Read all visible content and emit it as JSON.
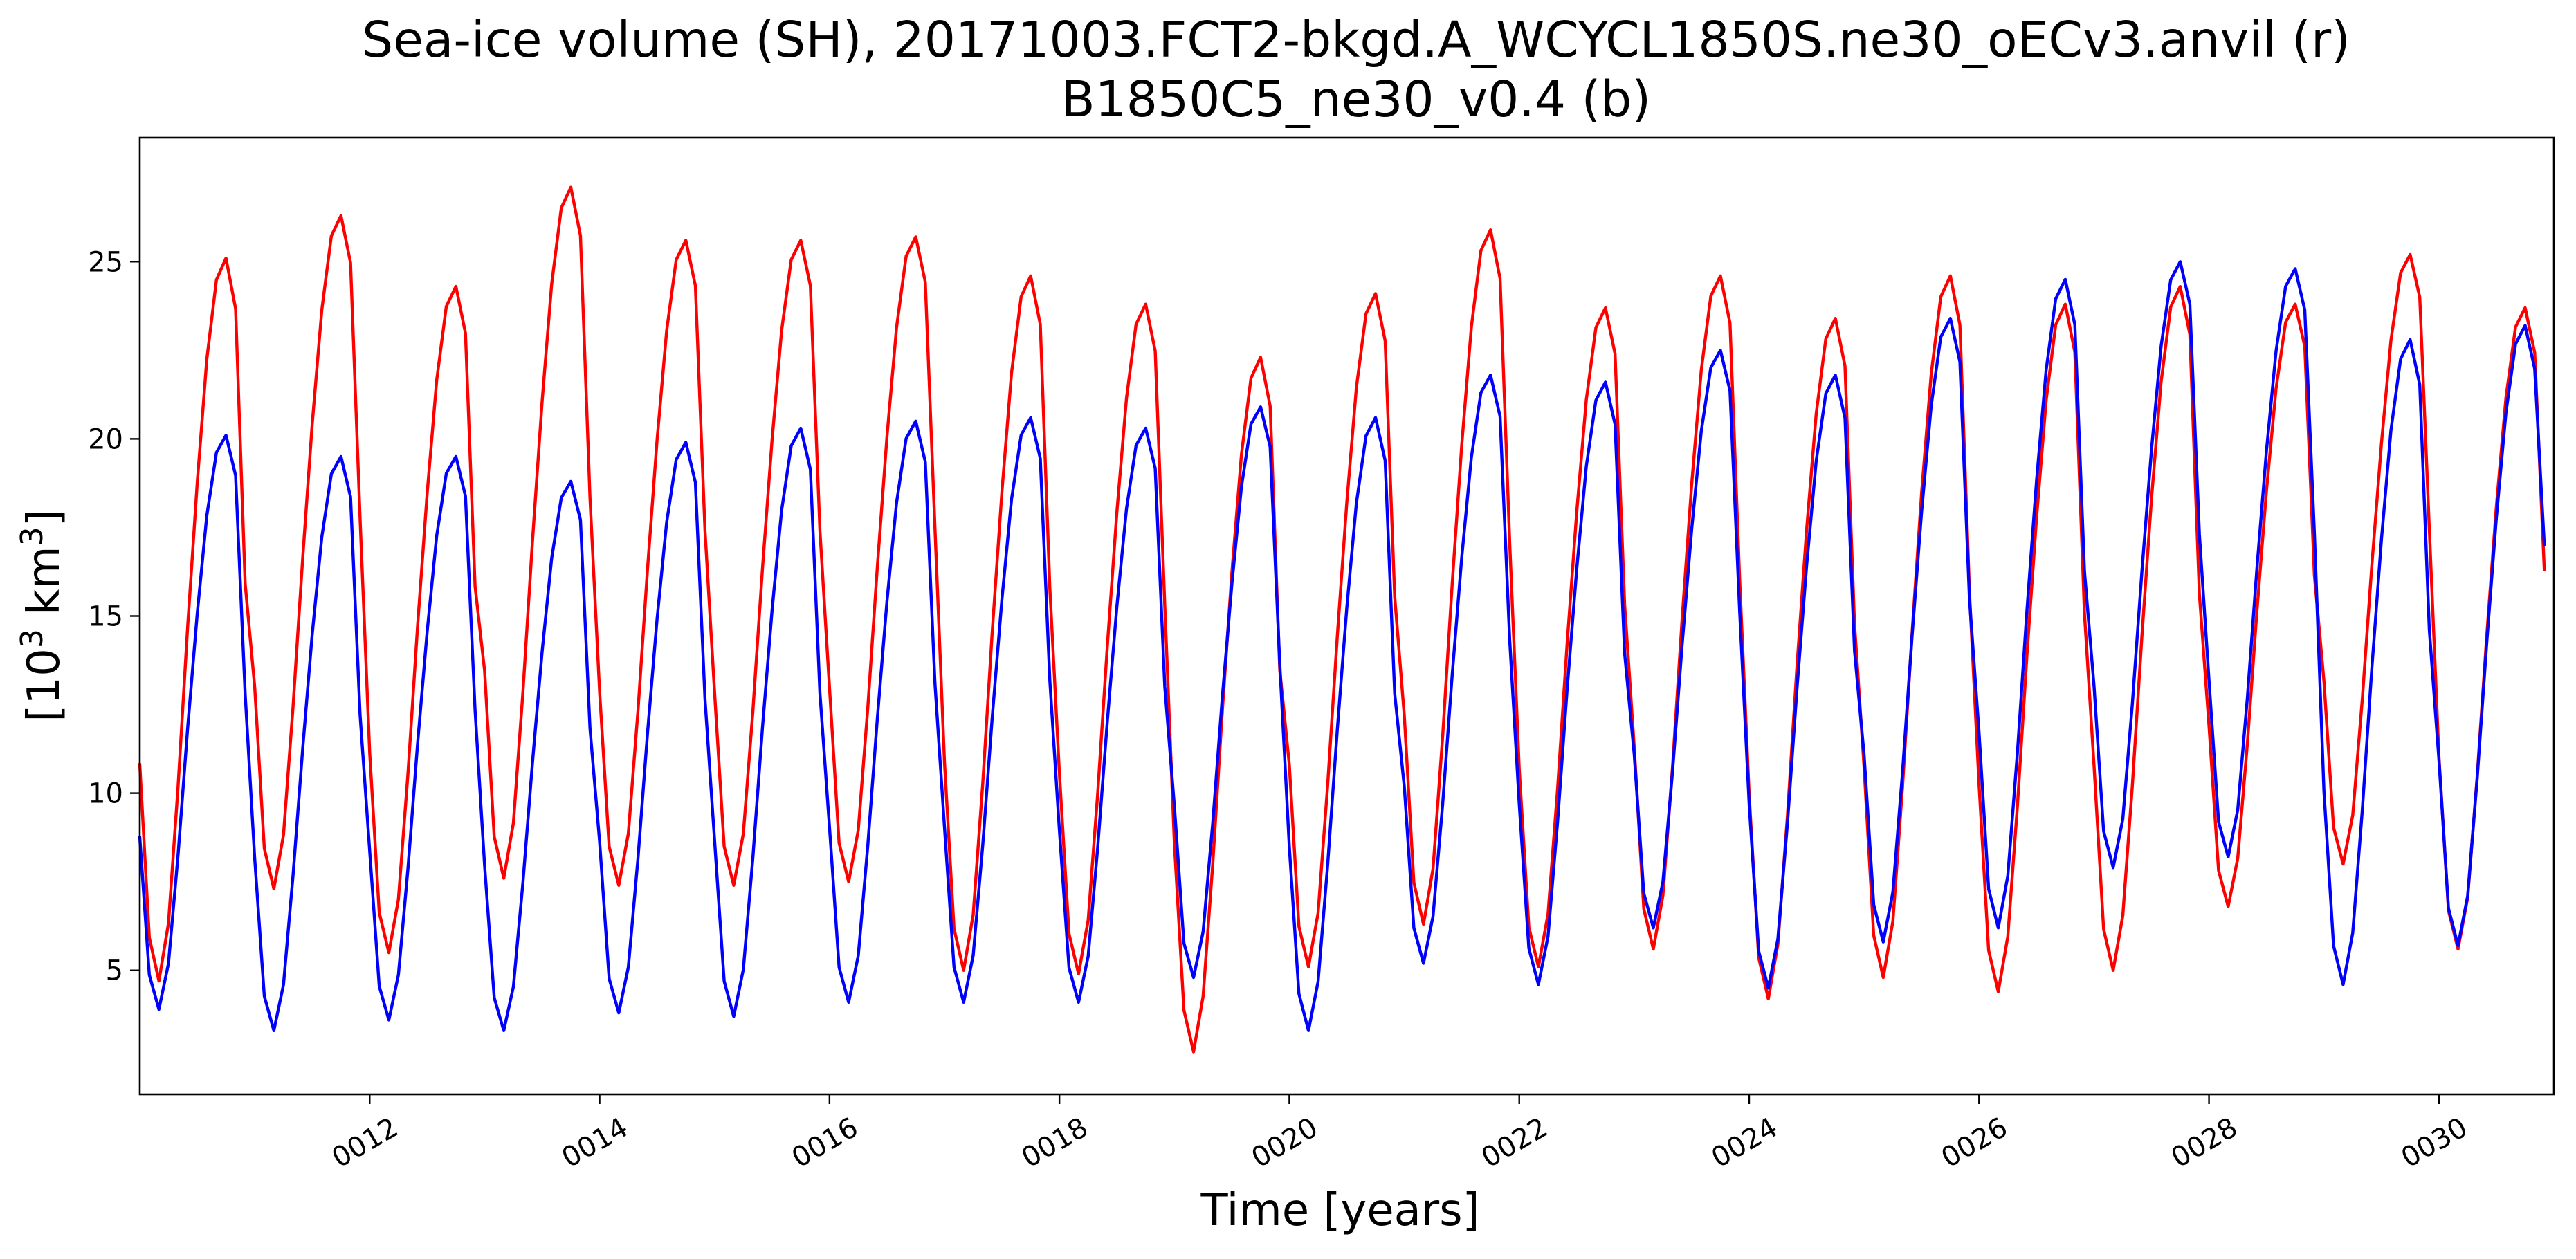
{
  "chart_data": {
    "type": "line",
    "title_line1": "Sea-ice volume (SH), 20171003.FCT2-bkgd.A_WCYCL1850S.ne30_oECv3.anvil (r)",
    "title_line2": "B1850C5_ne30_v0.4 (b)",
    "xlabel": "Time [years]",
    "ylabel_main": "[10",
    "ylabel_sup1": "3",
    "ylabel_mid": " km",
    "ylabel_sup2": "3",
    "ylabel_end": "]",
    "xlim": [
      "0010-01",
      "0030-12"
    ],
    "ylim": [
      1.5,
      28.5
    ],
    "grid": false,
    "x_ticks": [
      "0012",
      "0014",
      "0016",
      "0018",
      "0020",
      "0022",
      "0024",
      "0026",
      "0028",
      "0030"
    ],
    "y_ticks": [
      5,
      10,
      15,
      20,
      25
    ],
    "series": [
      {
        "color": "#ff0000",
        "start_year": 10,
        "annual_max": [
          25.1,
          26.3,
          24.3,
          27.1,
          25.6,
          25.6,
          25.7,
          24.6,
          23.8,
          22.3,
          24.1,
          25.9,
          23.7,
          24.6,
          23.4,
          24.6,
          23.8,
          24.3,
          23.8,
          25.2,
          23.7
        ],
        "annual_min": [
          4.7,
          7.3,
          5.5,
          7.6,
          7.4,
          7.4,
          7.5,
          5.0,
          4.9,
          2.7,
          5.1,
          6.3,
          5.1,
          5.6,
          4.2,
          4.8,
          4.4,
          5.0,
          6.8,
          8.0,
          5.6
        ],
        "end_value": 16.3
      },
      {
        "color": "#0000ff",
        "start_year": 10,
        "annual_max": [
          20.1,
          19.5,
          19.5,
          18.8,
          19.9,
          20.3,
          20.5,
          20.6,
          20.3,
          20.9,
          20.6,
          21.8,
          21.6,
          22.5,
          21.8,
          23.4,
          24.5,
          25.0,
          24.8,
          22.8,
          23.2
        ],
        "annual_min": [
          3.9,
          3.3,
          3.6,
          3.3,
          3.8,
          3.7,
          4.1,
          4.1,
          4.1,
          4.8,
          3.3,
          5.2,
          4.6,
          6.2,
          4.5,
          5.8,
          6.2,
          7.9,
          8.2,
          4.6,
          5.7
        ],
        "end_value": 17.0
      }
    ]
  }
}
